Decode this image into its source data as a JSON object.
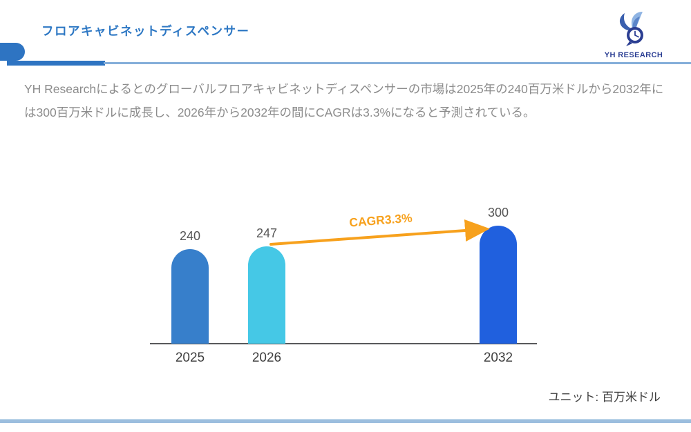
{
  "header": {
    "title": "フロアキャビネットディスペンサー",
    "logo_text": "YH RESEARCH"
  },
  "description": "YH Researchによるとのグローバルフロアキャビネットディスペンサーの市場は2025年の240百万米ドルから2032年には300百万米ドルに成長し、2026年から2032年の間にCAGRは3.3%になると予測されている。",
  "chart_data": {
    "type": "bar",
    "categories": [
      "2025",
      "2026",
      "2032"
    ],
    "values": [
      240,
      247,
      300
    ],
    "bar_colors": [
      "#377fcb",
      "#45c8e6",
      "#2060de"
    ],
    "annotation": "CAGR3.3%",
    "annotation_color": "#f7a11d",
    "unit_label": "ユニット: 百万米ドル",
    "title": "",
    "xlabel": "",
    "ylabel": "",
    "ylim": [
      0,
      300
    ],
    "grid": false,
    "legend": "none"
  },
  "colors": {
    "accent_blue": "#2e74c2",
    "title_blue": "#2e78c4",
    "thin_rule_blue": "#85aed9",
    "bottom_rule_blue": "#9cbede",
    "description_gray": "#8c8c8c",
    "axis_gray": "#58595b",
    "logo_navy": "#2b3e93",
    "arrow_orange": "#f7a11d"
  }
}
